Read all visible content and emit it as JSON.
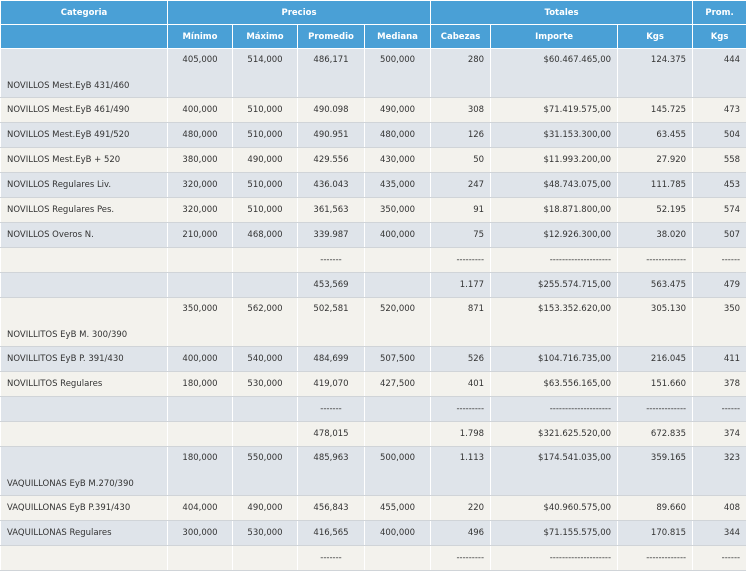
{
  "header": {
    "groups": [
      "Categoria",
      "Precios",
      "Totales",
      "Prom."
    ],
    "columns": [
      "Mínimo",
      "Máximo",
      "Promedio",
      "Mediana",
      "Cabezas",
      "Importe",
      "Kgs",
      "Kgs"
    ]
  },
  "table": {
    "rows": [
      [
        "NOVILLOS Mest.EyB 431/460",
        "405,000",
        "514,000",
        "486,171",
        "500,000",
        "280",
        "$60.467.465,00",
        "124.375",
        "444"
      ],
      [
        "NOVILLOS Mest.EyB 461/490",
        "400,000",
        "510,000",
        "490.098",
        "490,000",
        "308",
        "$71.419.575,00",
        "145.725",
        "473"
      ],
      [
        "NOVILLOS Mest.EyB 491/520",
        "480,000",
        "510,000",
        "490.951",
        "480,000",
        "126",
        "$31.153.300,00",
        "63.455",
        "504"
      ],
      [
        "NOVILLOS Mest.EyB + 520",
        "380,000",
        "490,000",
        "429.556",
        "430,000",
        "50",
        "$11.993.200,00",
        "27.920",
        "558"
      ],
      [
        "NOVILLOS Regulares Liv.",
        "320,000",
        "510,000",
        "436.043",
        "435,000",
        "247",
        "$48.743.075,00",
        "111.785",
        "453"
      ],
      [
        "NOVILLOS Regulares Pes.",
        "320,000",
        "510,000",
        "361,563",
        "350,000",
        "91",
        "$18.871.800,00",
        "52.195",
        "574"
      ],
      [
        "NOVILLOS Overos N.",
        "210,000",
        "468,000",
        "339.987",
        "400,000",
        "75",
        "$12.926.300,00",
        "38.020",
        "507"
      ],
      [
        null,
        null,
        null,
        "-------",
        null,
        "---------",
        "--------------------",
        "-------------",
        "------"
      ],
      [
        null,
        null,
        null,
        "453,569",
        null,
        "1.177",
        "$255.574.715,00",
        "563.475",
        "479"
      ],
      [
        "NOVILLITOS EyB M. 300/390",
        "350,000",
        "562,000",
        "502,581",
        "520,000",
        "871",
        "$153.352.620,00",
        "305.130",
        "350"
      ],
      [
        "NOVILLITOS EyB P. 391/430",
        "400,000",
        "540,000",
        "484,699",
        "507,500",
        "526",
        "$104.716.735,00",
        "216.045",
        "411"
      ],
      [
        "NOVILLITOS Regulares",
        "180,000",
        "530,000",
        "419,070",
        "427,500",
        "401",
        "$63.556.165,00",
        "151.660",
        "378"
      ],
      [
        null,
        null,
        null,
        "-------",
        null,
        "---------",
        "--------------------",
        "-------------",
        "------"
      ],
      [
        null,
        null,
        null,
        "478,015",
        null,
        "1.798",
        "$321.625.520,00",
        "672.835",
        "374"
      ],
      [
        "VAQUILLONAS EyB M.270/390",
        "180,000",
        "550,000",
        "485,963",
        "500,000",
        "1.113",
        "$174.541.035,00",
        "359.165",
        "323"
      ],
      [
        "VAQUILLONAS EyB P.391/430",
        "404,000",
        "490,000",
        "456,843",
        "455,000",
        "220",
        "$40.960.575,00",
        "89.660",
        "408"
      ],
      [
        "VAQUILLONAS Regulares",
        "300,000",
        "530,000",
        "416,565",
        "400,000",
        "496",
        "$71.155.575,00",
        "170.815",
        "344"
      ],
      [
        null,
        null,
        null,
        "-------",
        null,
        "---------",
        "--------------------",
        "-------------",
        "------"
      ]
    ]
  }
}
